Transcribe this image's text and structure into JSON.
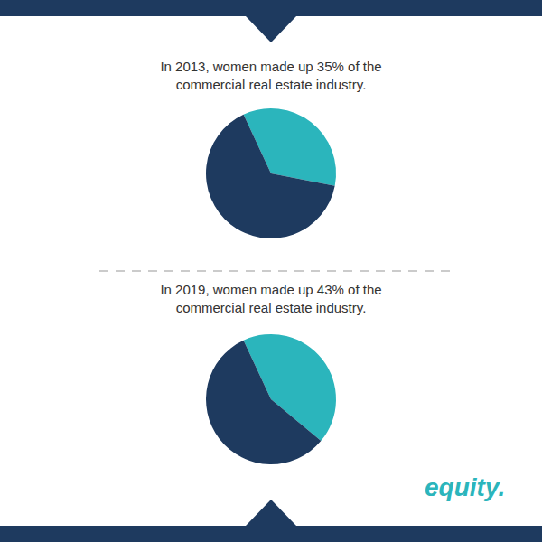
{
  "chart_data": [
    {
      "type": "pie",
      "annotations": [
        "In 2013, women made up 35% of the",
        "commercial real estate industry."
      ],
      "values": [
        35,
        65
      ],
      "colors": [
        "#2bb5bc",
        "#1e3a5f"
      ]
    },
    {
      "type": "pie",
      "annotations": [
        "In 2019, women made up 43% of the",
        "commercial real estate industry.",
        "equity."
      ],
      "values": [
        43,
        57
      ],
      "colors": [
        "#2bb5bc",
        "#1e3a5f"
      ]
    }
  ]
}
